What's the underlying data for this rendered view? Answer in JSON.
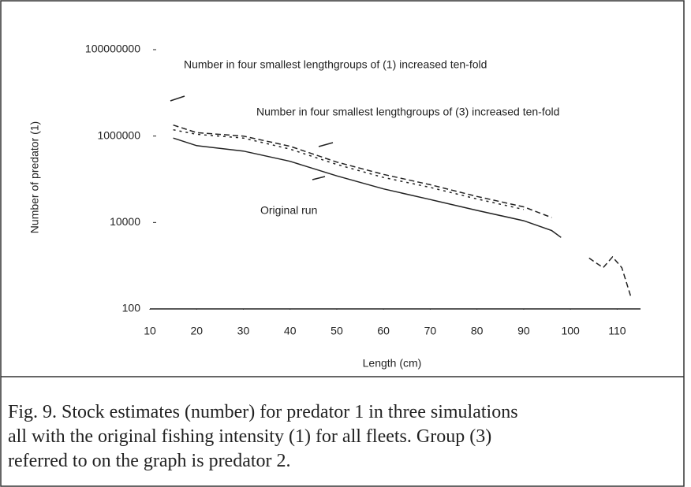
{
  "chart_data": {
    "type": "line",
    "x_label": "Length (cm)",
    "y_label": "Number of predator (1)",
    "x": [
      15,
      20,
      30,
      40,
      50,
      60,
      70,
      80,
      90,
      96,
      98,
      104,
      107,
      109,
      111,
      113
    ],
    "series": [
      {
        "name": "Original run",
        "color": "#222222",
        "style": "solid",
        "values": [
          900000,
          600000,
          450000,
          260000,
          120000,
          60000,
          34000,
          19000,
          11000,
          6500,
          4500,
          null,
          null,
          null,
          null,
          null
        ]
      },
      {
        "name": "Number in four smallest lengthgroups of (1) increased ten-fold",
        "color": "#222222",
        "style": "dashed",
        "values": [
          1800000,
          1200000,
          1000000,
          580000,
          250000,
          130000,
          75000,
          40000,
          23000,
          13000,
          null,
          1500,
          900,
          1600,
          900,
          180
        ]
      },
      {
        "name": "Number in four smallest lengthgroups of (3) increased ten-fold",
        "color": "#222222",
        "style": "dotted",
        "values": [
          1400000,
          1100000,
          900000,
          500000,
          220000,
          110000,
          65000,
          35000,
          20000,
          null,
          null,
          null,
          null,
          null,
          null,
          null
        ]
      }
    ],
    "xlim": [
      10,
      115
    ],
    "xticks": [
      10,
      20,
      30,
      40,
      50,
      60,
      70,
      80,
      90,
      100,
      110
    ],
    "ylim": [
      100,
      100000000
    ],
    "yticks": [
      100,
      10000,
      1000000,
      100000000
    ],
    "log_y": true,
    "caption": [
      "Fig. 9. Stock estimates (number) for predator 1 in three simulations",
      "all with the original fishing intensity (1) for all fleets. Group (3)",
      "referred to on the graph is predator 2."
    ]
  }
}
